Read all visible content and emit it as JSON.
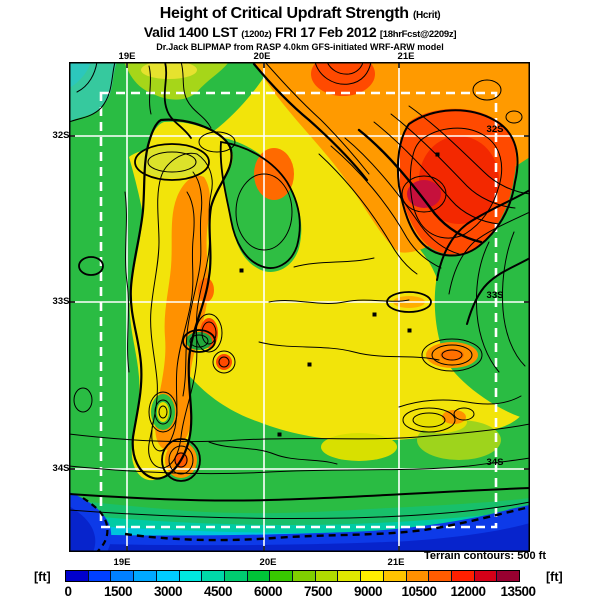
{
  "title": {
    "main": "Height of Critical Updraft Strength",
    "main_sub": "(Hcrit)",
    "valid_prefix": "Valid 1400 LST",
    "valid_zulu": "(1200z)",
    "valid_date": "FRI 17 Feb 2012",
    "forecast_tag": "[18hrFcst@2209z]",
    "model_line": "Dr.Jack BLIPMAP from RASP 4.0km GFS-initiated WRF-ARW model"
  },
  "map": {
    "axis_labels": {
      "top": [
        "19E",
        "20E",
        "21E"
      ],
      "bottom": [
        "19E",
        "20E",
        "21E"
      ],
      "left": [
        "32S",
        "33S",
        "34S"
      ],
      "right": [
        "32S",
        "33S",
        "34S"
      ]
    },
    "terrain_note": "Terrain contours: 500 ft"
  },
  "colorbar": {
    "unit_left": "[ft]",
    "unit_right": "[ft]",
    "tick_labels": [
      "0",
      "1500",
      "3000",
      "4500",
      "6000",
      "7500",
      "9000",
      "10500",
      "12000",
      "13500"
    ],
    "tick_min": 0,
    "tick_max": 13500,
    "tick_interval_ft": 1500,
    "segment_colors": [
      "#0000cd",
      "#0040ff",
      "#0080ff",
      "#00a8ff",
      "#00ccff",
      "#00e8e0",
      "#00d8a8",
      "#00cc70",
      "#00c438",
      "#38c800",
      "#80d000",
      "#b0dc00",
      "#e0e800",
      "#ffee00",
      "#ffc400",
      "#ff9000",
      "#ff5c00",
      "#ff2000",
      "#d40018",
      "#980030"
    ]
  }
}
